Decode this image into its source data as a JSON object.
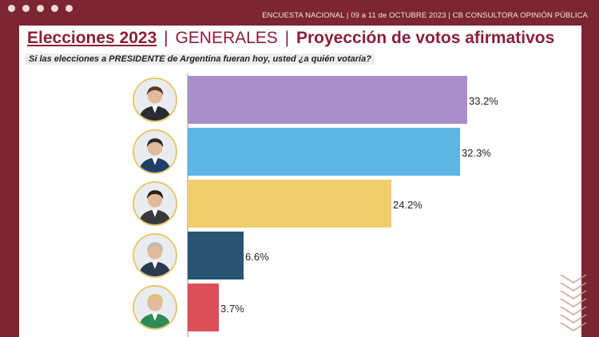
{
  "header": {
    "survey_line": "ENCUESTA NACIONAL | 09 a 11 de OCTUBRE 2023 | CB CONSULTORA OPINIÓN PÚBLICA"
  },
  "title": {
    "part1": "Elecciones 2023",
    "separator": "|",
    "part2": "GENERALES",
    "part3": "Proyección de votos afirmativos"
  },
  "question": "Si las elecciones a PRESIDENTE de Argentina fueran hoy, usted ¿a quién votaría?",
  "colors": {
    "background": "#7b2630",
    "title": "#8b1f3b",
    "avatar_ring": "#e6c76a"
  },
  "chart_data": {
    "type": "bar",
    "orientation": "horizontal",
    "values": [
      33.2,
      32.3,
      24.2,
      6.6,
      3.7
    ],
    "labels": [
      "33.2%",
      "32.3%",
      "24.2%",
      "6.6%",
      "3.7%"
    ],
    "colors": [
      "#a98fca",
      "#5cb5e4",
      "#efce6b",
      "#2a5473",
      "#dd4f58"
    ],
    "category_icons": [
      "candidate-portrait-1",
      "candidate-portrait-2",
      "candidate-portrait-3",
      "candidate-portrait-4",
      "candidate-portrait-5"
    ],
    "value_max": 33.2,
    "grid": false
  }
}
